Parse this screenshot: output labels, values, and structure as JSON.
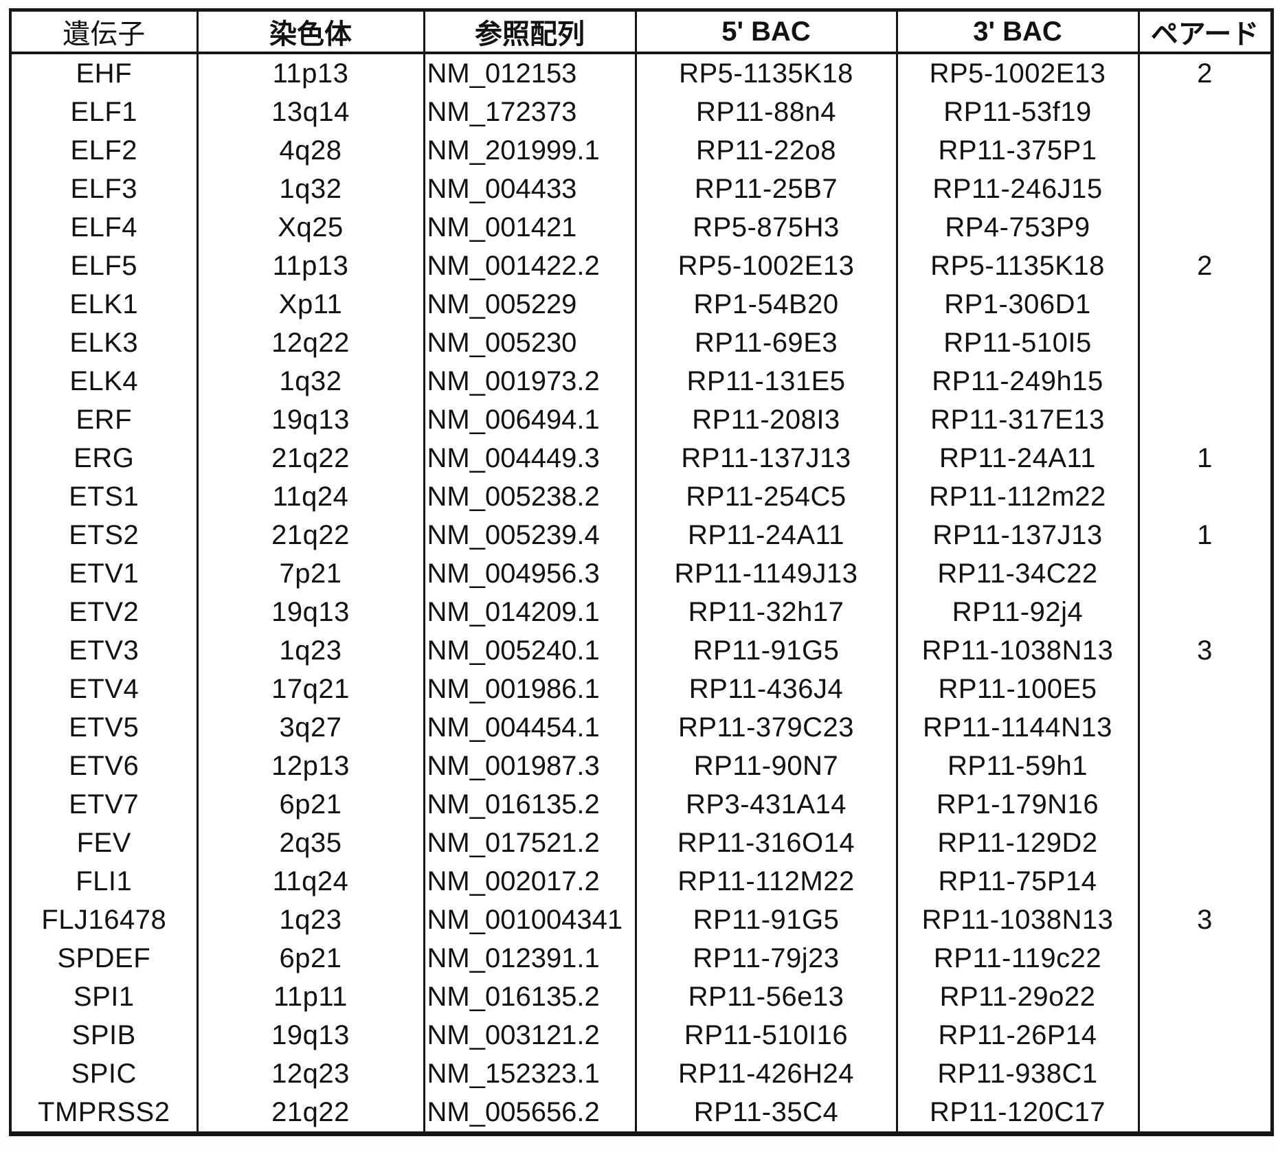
{
  "colors": {
    "ink": "#161616",
    "paper": "#ffffff"
  },
  "table": {
    "columns": [
      {
        "id": "gene",
        "label": "遺伝子"
      },
      {
        "id": "chromosome",
        "label": "染色体"
      },
      {
        "id": "refseq",
        "label": "参照配列"
      },
      {
        "id": "bac5",
        "label": "5' BAC"
      },
      {
        "id": "bac3",
        "label": "3' BAC"
      },
      {
        "id": "paired",
        "label": "ペアード"
      }
    ],
    "rows": [
      [
        "EHF",
        "11p13",
        "NM_012153",
        "RP5-1135K18",
        "RP5-1002E13",
        "2"
      ],
      [
        "ELF1",
        "13q14",
        "NM_172373",
        "RP11-88n4",
        "RP11-53f19",
        ""
      ],
      [
        "ELF2",
        "4q28",
        "NM_201999.1",
        "RP11-22o8",
        "RP11-375P1",
        ""
      ],
      [
        "ELF3",
        "1q32",
        "NM_004433",
        "RP11-25B7",
        "RP11-246J15",
        ""
      ],
      [
        "ELF4",
        "Xq25",
        "NM_001421",
        "RP5-875H3",
        "RP4-753P9",
        ""
      ],
      [
        "ELF5",
        "11p13",
        "NM_001422.2",
        "RP5-1002E13",
        "RP5-1135K18",
        "2"
      ],
      [
        "ELK1",
        "Xp11",
        "NM_005229",
        "RP1-54B20",
        "RP1-306D1",
        ""
      ],
      [
        "ELK3",
        "12q22",
        "NM_005230",
        "RP11-69E3",
        "RP11-510I5",
        ""
      ],
      [
        "ELK4",
        "1q32",
        "NM_001973.2",
        "RP11-131E5",
        "RP11-249h15",
        ""
      ],
      [
        "ERF",
        "19q13",
        "NM_006494.1",
        "RP11-208I3",
        "RP11-317E13",
        ""
      ],
      [
        "ERG",
        "21q22",
        "NM_004449.3",
        "RP11-137J13",
        "RP11-24A11",
        "1"
      ],
      [
        "ETS1",
        "11q24",
        "NM_005238.2",
        "RP11-254C5",
        "RP11-112m22",
        ""
      ],
      [
        "ETS2",
        "21q22",
        "NM_005239.4",
        "RP11-24A11",
        "RP11-137J13",
        "1"
      ],
      [
        "ETV1",
        "7p21",
        "NM_004956.3",
        "RP11-1149J13",
        "RP11-34C22",
        ""
      ],
      [
        "ETV2",
        "19q13",
        "NM_014209.1",
        "RP11-32h17",
        "RP11-92j4",
        ""
      ],
      [
        "ETV3",
        "1q23",
        "NM_005240.1",
        "RP11-91G5",
        "RP11-1038N13",
        "3"
      ],
      [
        "ETV4",
        "17q21",
        "NM_001986.1",
        "RP11-436J4",
        "RP11-100E5",
        ""
      ],
      [
        "ETV5",
        "3q27",
        "NM_004454.1",
        "RP11-379C23",
        "RP11-1144N13",
        ""
      ],
      [
        "ETV6",
        "12p13",
        "NM_001987.3",
        "RP11-90N7",
        "RP11-59h1",
        ""
      ],
      [
        "ETV7",
        "6p21",
        "NM_016135.2",
        "RP3-431A14",
        "RP1-179N16",
        ""
      ],
      [
        "FEV",
        "2q35",
        "NM_017521.2",
        "RP11-316O14",
        "RP11-129D2",
        ""
      ],
      [
        "FLI1",
        "11q24",
        "NM_002017.2",
        "RP11-112M22",
        "RP11-75P14",
        ""
      ],
      [
        "FLJ16478",
        "1q23",
        "NM_001004341",
        "RP11-91G5",
        "RP11-1038N13",
        "3"
      ],
      [
        "SPDEF",
        "6p21",
        "NM_012391.1",
        "RP11-79j23",
        "RP11-119c22",
        ""
      ],
      [
        "SPI1",
        "11p11",
        "NM_016135.2",
        "RP11-56e13",
        "RP11-29o22",
        ""
      ],
      [
        "SPIB",
        "19q13",
        "NM_003121.2",
        "RP11-510I16",
        "RP11-26P14",
        ""
      ],
      [
        "SPIC",
        "12q23",
        "NM_152323.1",
        "RP11-426H24",
        "RP11-938C1",
        ""
      ],
      [
        "TMPRSS2",
        "21q22",
        "NM_005656.2",
        "RP11-35C4",
        "RP11-120C17",
        ""
      ]
    ]
  }
}
